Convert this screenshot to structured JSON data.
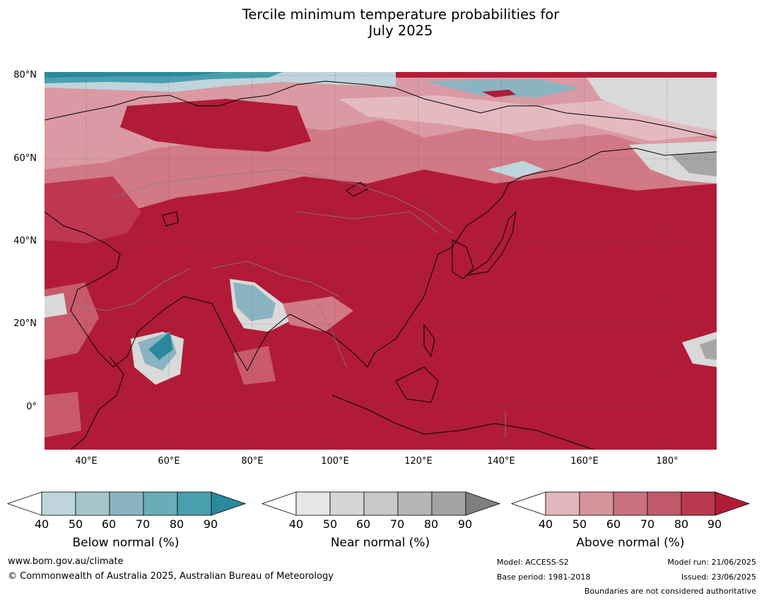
{
  "title": {
    "line1": "Tercile minimum temperature probabilities for",
    "line2": "July 2025"
  },
  "map": {
    "lat_labels": [
      "80°N",
      "60°N",
      "40°N",
      "20°N",
      "0°"
    ],
    "lon_labels": [
      "40°E",
      "60°E",
      "80°E",
      "100°E",
      "120°E",
      "140°E",
      "160°E",
      "180°"
    ],
    "colors": {
      "above_90": "#b11b38",
      "above_80": "#bf3651",
      "above_70": "#c85a6c",
      "above_60": "#d27986",
      "above_50": "#d99aa3",
      "above_40": "#e4bac0",
      "near": "#d9d9d9",
      "near_dark": "#a6a6a6",
      "below_40": "#c0d4db",
      "below_60": "#8ab4c1",
      "below_80": "#4a9fae",
      "below_90": "#2a8a9c",
      "coast": "#000000",
      "border": "#808080"
    }
  },
  "colorbars": [
    {
      "title": "Below normal (%)",
      "ticks": [
        "40",
        "50",
        "60",
        "70",
        "80",
        "90"
      ],
      "colors": [
        "#ffffff",
        "#bfd4db",
        "#a6c6cc",
        "#8ab4c1",
        "#6aacb8",
        "#4a9fae",
        "#2a8a9c"
      ]
    },
    {
      "title": "Near normal (%)",
      "ticks": [
        "40",
        "50",
        "60",
        "70",
        "80",
        "90"
      ],
      "colors": [
        "#ffffff",
        "#e6e6e6",
        "#d6d6d6",
        "#c8c8c8",
        "#b5b5b5",
        "#a3a3a3",
        "#7f7f7f"
      ]
    },
    {
      "title": "Above normal (%)",
      "ticks": [
        "40",
        "50",
        "60",
        "70",
        "80",
        "90"
      ],
      "colors": [
        "#ffffff",
        "#e2b6bc",
        "#d5959d",
        "#c9727f",
        "#c05a6a",
        "#b93a4f",
        "#b11b38"
      ]
    }
  ],
  "footer": {
    "website": "www.bom.gov.au/climate",
    "copyright": "© Commonwealth of Australia 2025, Australian Bureau of Meteorology",
    "model": "Model: ACCESS-S2",
    "base_period": "Base period: 1981-2018",
    "model_run": "Model run: 21/06/2025",
    "issued": "Issued: 23/06/2025",
    "disclaimer": "Boundaries are not considered authoritative"
  }
}
